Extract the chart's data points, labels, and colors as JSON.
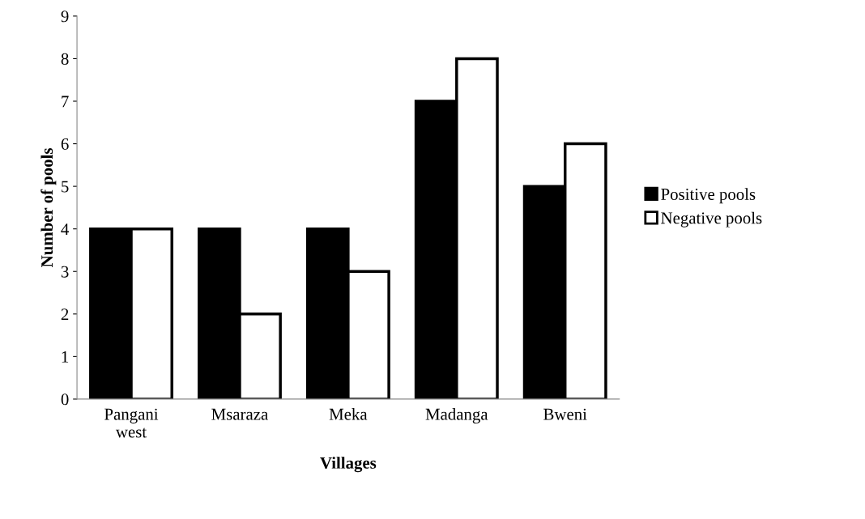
{
  "chart_data": {
    "type": "bar",
    "xlabel": "Villages",
    "ylabel": "Number of pools",
    "categories": [
      "Pangani\nwest",
      "Msaraza",
      "Meka",
      "Madanga",
      "Bweni"
    ],
    "series": [
      {
        "name": "Positive pools",
        "color": "#000000",
        "values": [
          4,
          4,
          4,
          7,
          5
        ]
      },
      {
        "name": "Negative pools",
        "color": "#ffffff",
        "values": [
          4,
          2,
          3,
          8,
          6
        ]
      }
    ],
    "ylim": [
      0,
      9
    ],
    "yticks": [
      0,
      1,
      2,
      3,
      4,
      5,
      6,
      7,
      8,
      9
    ],
    "grid": false,
    "legend": "right"
  }
}
